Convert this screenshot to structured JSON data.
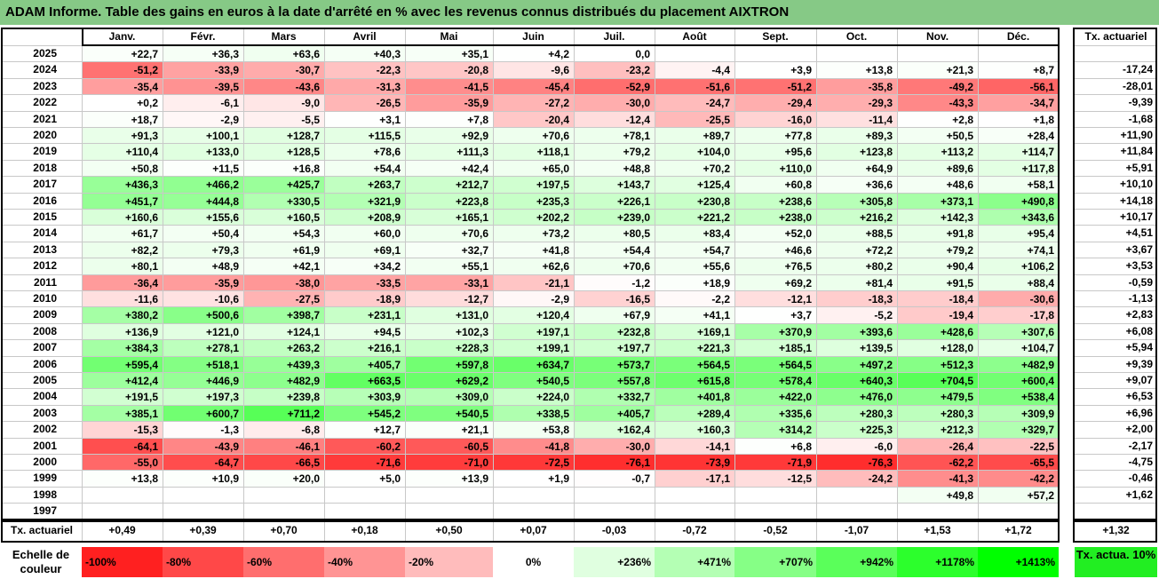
{
  "title": "ADAM Informe. Table des gains en euros à la date d'arrêté en % avec les revenus connus distribués du placement AIXTRON",
  "chart_data": {
    "type": "table",
    "columns": [
      "Janv.",
      "Févr.",
      "Mars",
      "Avril",
      "Mai",
      "Juin",
      "Juil.",
      "Août",
      "Sept.",
      "Oct.",
      "Nov.",
      "Déc."
    ],
    "rate_header": "Tx. actuariel",
    "rows": [
      {
        "year": "2025",
        "values": [
          "+22,7",
          "+36,3",
          "+63,6",
          "+40,3",
          "+35,1",
          "+4,2",
          "0,0",
          "",
          "",
          "",
          "",
          ""
        ],
        "rate": ""
      },
      {
        "year": "2024",
        "values": [
          "-51,2",
          "-33,9",
          "-30,7",
          "-22,3",
          "-20,8",
          "-9,6",
          "-23,2",
          "-4,4",
          "+3,9",
          "+13,8",
          "+21,3",
          "+8,7"
        ],
        "rate": "-17,24"
      },
      {
        "year": "2023",
        "values": [
          "-35,4",
          "-39,5",
          "-43,6",
          "-31,3",
          "-41,5",
          "-45,4",
          "-52,9",
          "-51,6",
          "-51,2",
          "-35,8",
          "-49,2",
          "-56,1"
        ],
        "rate": "-28,01"
      },
      {
        "year": "2022",
        "values": [
          "+0,2",
          "-6,1",
          "-9,0",
          "-26,5",
          "-35,9",
          "-27,2",
          "-30,0",
          "-24,7",
          "-29,4",
          "-29,3",
          "-43,3",
          "-34,7"
        ],
        "rate": "-9,39"
      },
      {
        "year": "2021",
        "values": [
          "+18,7",
          "-2,9",
          "-5,5",
          "+3,1",
          "+7,8",
          "-20,4",
          "-12,4",
          "-25,5",
          "-16,0",
          "-11,4",
          "+2,8",
          "+1,8"
        ],
        "rate": "-1,68"
      },
      {
        "year": "2020",
        "values": [
          "+91,3",
          "+100,1",
          "+128,7",
          "+115,5",
          "+92,9",
          "+70,6",
          "+78,1",
          "+89,7",
          "+77,8",
          "+89,3",
          "+50,5",
          "+28,4"
        ],
        "rate": "+11,90"
      },
      {
        "year": "2019",
        "values": [
          "+110,4",
          "+133,0",
          "+128,5",
          "+78,6",
          "+111,3",
          "+118,1",
          "+79,2",
          "+104,0",
          "+95,6",
          "+123,8",
          "+113,2",
          "+114,7"
        ],
        "rate": "+11,84"
      },
      {
        "year": "2018",
        "values": [
          "+50,8",
          "+11,5",
          "+16,8",
          "+54,4",
          "+42,4",
          "+65,0",
          "+48,8",
          "+70,2",
          "+110,0",
          "+64,9",
          "+89,6",
          "+117,8"
        ],
        "rate": "+5,91"
      },
      {
        "year": "2017",
        "values": [
          "+436,3",
          "+466,2",
          "+425,7",
          "+263,7",
          "+212,7",
          "+197,5",
          "+143,7",
          "+125,4",
          "+60,8",
          "+36,6",
          "+48,6",
          "+58,1"
        ],
        "rate": "+10,10"
      },
      {
        "year": "2016",
        "values": [
          "+451,7",
          "+444,8",
          "+330,5",
          "+321,9",
          "+223,8",
          "+235,3",
          "+226,1",
          "+230,8",
          "+238,6",
          "+305,8",
          "+373,1",
          "+490,8"
        ],
        "rate": "+14,18"
      },
      {
        "year": "2015",
        "values": [
          "+160,6",
          "+155,6",
          "+160,5",
          "+208,9",
          "+165,1",
          "+202,2",
          "+239,0",
          "+221,2",
          "+238,0",
          "+216,2",
          "+142,3",
          "+343,6"
        ],
        "rate": "+10,17"
      },
      {
        "year": "2014",
        "values": [
          "+61,7",
          "+50,4",
          "+54,3",
          "+60,0",
          "+70,6",
          "+73,2",
          "+80,5",
          "+83,4",
          "+52,0",
          "+88,5",
          "+91,8",
          "+95,4"
        ],
        "rate": "+4,51"
      },
      {
        "year": "2013",
        "values": [
          "+82,2",
          "+79,3",
          "+61,9",
          "+69,1",
          "+32,7",
          "+41,8",
          "+54,4",
          "+54,7",
          "+46,6",
          "+72,2",
          "+79,2",
          "+74,1"
        ],
        "rate": "+3,67"
      },
      {
        "year": "2012",
        "values": [
          "+80,1",
          "+48,9",
          "+42,1",
          "+34,2",
          "+55,1",
          "+62,6",
          "+70,6",
          "+55,6",
          "+76,5",
          "+80,2",
          "+90,4",
          "+106,2"
        ],
        "rate": "+3,53"
      },
      {
        "year": "2011",
        "values": [
          "-36,4",
          "-35,9",
          "-38,0",
          "-33,5",
          "-33,1",
          "-21,1",
          "-1,2",
          "+18,9",
          "+69,2",
          "+81,4",
          "+91,5",
          "+88,4"
        ],
        "rate": "-0,59"
      },
      {
        "year": "2010",
        "values": [
          "-11,6",
          "-10,6",
          "-27,5",
          "-18,9",
          "-12,7",
          "-2,9",
          "-16,5",
          "-2,2",
          "-12,1",
          "-18,3",
          "-18,4",
          "-30,6"
        ],
        "rate": "-1,13"
      },
      {
        "year": "2009",
        "values": [
          "+380,2",
          "+500,6",
          "+398,7",
          "+231,1",
          "+131,0",
          "+120,4",
          "+67,9",
          "+41,1",
          "+3,7",
          "-5,2",
          "-19,4",
          "-17,8"
        ],
        "rate": "+2,83"
      },
      {
        "year": "2008",
        "values": [
          "+136,9",
          "+121,0",
          "+124,1",
          "+94,5",
          "+102,3",
          "+197,1",
          "+232,8",
          "+169,1",
          "+370,9",
          "+393,6",
          "+428,6",
          "+307,6"
        ],
        "rate": "+6,08"
      },
      {
        "year": "2007",
        "values": [
          "+384,3",
          "+278,1",
          "+263,2",
          "+216,1",
          "+228,3",
          "+199,1",
          "+197,7",
          "+221,3",
          "+185,1",
          "+139,5",
          "+128,0",
          "+104,7"
        ],
        "rate": "+5,94"
      },
      {
        "year": "2006",
        "values": [
          "+595,4",
          "+518,1",
          "+439,3",
          "+405,7",
          "+597,8",
          "+634,7",
          "+573,7",
          "+564,5",
          "+564,5",
          "+497,2",
          "+512,3",
          "+482,9"
        ],
        "rate": "+9,39"
      },
      {
        "year": "2005",
        "values": [
          "+412,4",
          "+446,9",
          "+482,9",
          "+663,5",
          "+629,2",
          "+540,5",
          "+557,8",
          "+615,8",
          "+578,4",
          "+640,3",
          "+704,5",
          "+600,4"
        ],
        "rate": "+9,07"
      },
      {
        "year": "2004",
        "values": [
          "+191,5",
          "+197,3",
          "+239,8",
          "+303,9",
          "+309,0",
          "+224,0",
          "+332,7",
          "+401,8",
          "+422,0",
          "+476,0",
          "+479,5",
          "+538,4"
        ],
        "rate": "+6,53"
      },
      {
        "year": "2003",
        "values": [
          "+385,1",
          "+600,7",
          "+711,2",
          "+545,2",
          "+540,5",
          "+338,5",
          "+405,7",
          "+289,4",
          "+335,6",
          "+280,3",
          "+280,3",
          "+309,9"
        ],
        "rate": "+6,96"
      },
      {
        "year": "2002",
        "values": [
          "-15,3",
          "-1,3",
          "-6,8",
          "+12,7",
          "+21,1",
          "+53,8",
          "+162,4",
          "+160,3",
          "+314,2",
          "+225,3",
          "+212,3",
          "+329,7"
        ],
        "rate": "+2,00"
      },
      {
        "year": "2001",
        "values": [
          "-64,1",
          "-43,9",
          "-46,1",
          "-60,2",
          "-60,5",
          "-41,8",
          "-30,0",
          "-14,1",
          "+6,8",
          "-6,0",
          "-26,4",
          "-22,5"
        ],
        "rate": "-2,17"
      },
      {
        "year": "2000",
        "values": [
          "-55,0",
          "-64,7",
          "-66,5",
          "-71,6",
          "-71,0",
          "-72,5",
          "-76,1",
          "-73,9",
          "-71,9",
          "-76,3",
          "-62,2",
          "-65,5"
        ],
        "rate": "-4,75"
      },
      {
        "year": "1999",
        "values": [
          "+13,8",
          "+10,9",
          "+20,0",
          "+5,0",
          "+13,9",
          "+1,9",
          "-0,7",
          "-17,1",
          "-12,5",
          "-24,2",
          "-41,3",
          "-42,2"
        ],
        "rate": "-0,46"
      },
      {
        "year": "1998",
        "values": [
          "",
          "",
          "",
          "",
          "",
          "",
          "",
          "",
          "",
          "",
          "+49,8",
          "+57,2"
        ],
        "rate": "+1,62"
      },
      {
        "year": "1997",
        "values": [
          "",
          "",
          "",
          "",
          "",
          "",
          "",
          "",
          "",
          "",
          "",
          ""
        ],
        "rate": ""
      }
    ],
    "footer": {
      "label": "Tx. actuariel",
      "values": [
        "+0,49",
        "+0,39",
        "+0,70",
        "+0,18",
        "+0,50",
        "+0,07",
        "-0,03",
        "-0,72",
        "-0,52",
        "-1,07",
        "+1,53",
        "+1,72"
      ],
      "rate": "+1,32"
    },
    "legend": {
      "label": "Echelle de couleur",
      "items": [
        {
          "text": "-100%",
          "color": "#ff2020"
        },
        {
          "text": "-80%",
          "color": "#ff4848"
        },
        {
          "text": "-60%",
          "color": "#ff6e6e"
        },
        {
          "text": "-40%",
          "color": "#ff9494"
        },
        {
          "text": "-20%",
          "color": "#ffbcbc"
        },
        {
          "text": "0%",
          "color": "#ffffff"
        },
        {
          "text": "+236%",
          "color": "#e0ffe0"
        },
        {
          "text": "+471%",
          "color": "#b4ffb4"
        },
        {
          "text": "+707%",
          "color": "#86ff86"
        },
        {
          "text": "+942%",
          "color": "#5aff5a"
        },
        {
          "text": "+1178%",
          "color": "#2cff2c"
        },
        {
          "text": "+1413%",
          "color": "#00ff00"
        }
      ],
      "rate_box": {
        "text": "Tx. actua. 10%",
        "color": "#22ee22"
      }
    }
  }
}
